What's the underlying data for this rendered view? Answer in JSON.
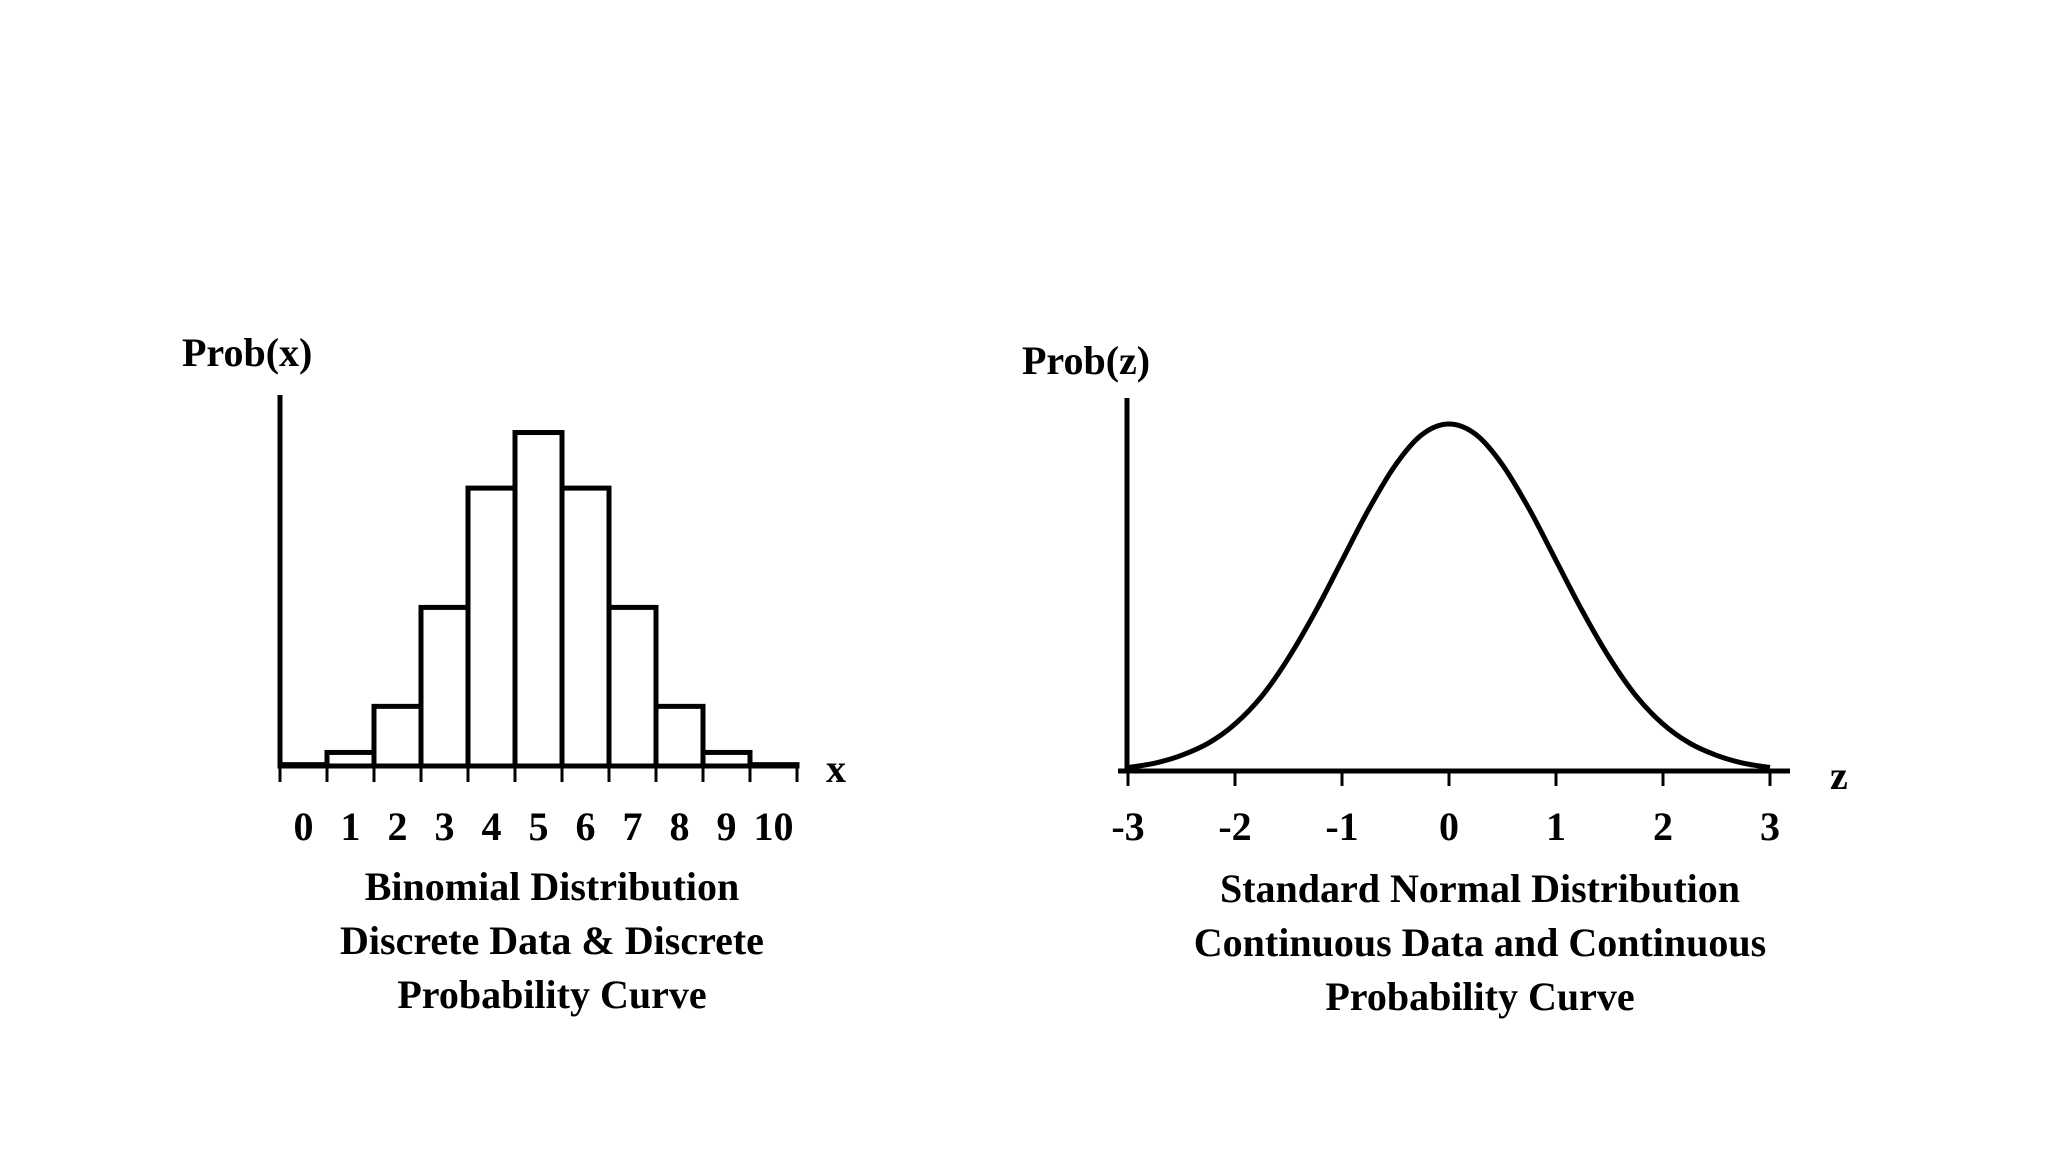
{
  "chart_data": [
    {
      "type": "bar",
      "ylabel": "Prob(x)",
      "xlabel": "x",
      "categories": [
        "0",
        "1",
        "2",
        "3",
        "4",
        "5",
        "6",
        "7",
        "8",
        "9",
        "10"
      ],
      "values": [
        0.001,
        0.01,
        0.044,
        0.117,
        0.205,
        0.246,
        0.205,
        0.117,
        0.044,
        0.01,
        0.001
      ],
      "ylim": [
        0,
        0.27
      ],
      "caption": [
        "Binomial Distribution",
        "Discrete Data & Discrete",
        "Probability Curve"
      ],
      "grid": false
    },
    {
      "type": "line",
      "ylabel": "Prob(z)",
      "xlabel": "z",
      "xticks": [
        -3,
        -2,
        -1,
        0,
        1,
        2,
        3
      ],
      "xlim": [
        -3,
        3.3
      ],
      "ylim": [
        0,
        0.42
      ],
      "x": [
        -3,
        -2.75,
        -2.5,
        -2.25,
        -2,
        -1.75,
        -1.5,
        -1.25,
        -1,
        -0.75,
        -0.5,
        -0.25,
        0,
        0.25,
        0.5,
        0.75,
        1,
        1.25,
        1.5,
        1.75,
        2,
        2.25,
        2.5,
        2.75,
        3
      ],
      "y": [
        0.004,
        0.009,
        0.018,
        0.032,
        0.054,
        0.086,
        0.13,
        0.183,
        0.242,
        0.301,
        0.352,
        0.387,
        0.399,
        0.387,
        0.352,
        0.301,
        0.242,
        0.183,
        0.13,
        0.086,
        0.054,
        0.032,
        0.018,
        0.009,
        0.004
      ],
      "caption": [
        "Standard Normal Distribution",
        "Continuous Data and Continuous",
        "Probability Curve"
      ],
      "grid": false
    }
  ],
  "colors": {
    "ink": "#000000",
    "bar_fill": "#ffffff",
    "background": "#ffffff"
  }
}
